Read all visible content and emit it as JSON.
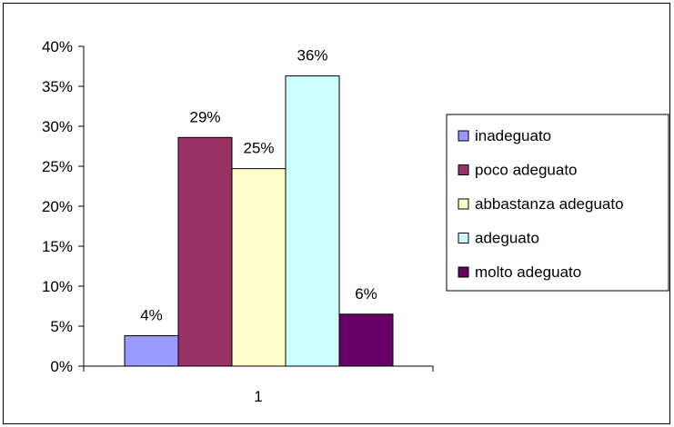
{
  "chart_data": {
    "type": "bar",
    "categories": [
      "1"
    ],
    "series": [
      {
        "name": "inadeguato",
        "values": [
          0.038
        ],
        "label": "4%",
        "color": "#9999ff"
      },
      {
        "name": "poco adeguato",
        "values": [
          0.286
        ],
        "label": "29%",
        "color": "#993366"
      },
      {
        "name": "abbastanza adeguato",
        "values": [
          0.247
        ],
        "label": "25%",
        "color": "#ffffcc"
      },
      {
        "name": "adeguato",
        "values": [
          0.363
        ],
        "label": "36%",
        "color": "#ccffff"
      },
      {
        "name": "molto adeguato",
        "values": [
          0.065
        ],
        "label": "6%",
        "color": "#660066"
      }
    ],
    "yticks": [
      "0%",
      "5%",
      "10%",
      "15%",
      "20%",
      "25%",
      "30%",
      "35%",
      "40%"
    ],
    "ylim": [
      0,
      0.4
    ],
    "grid": false,
    "legend_position": "right",
    "title": "",
    "xlabel": "",
    "ylabel": ""
  }
}
